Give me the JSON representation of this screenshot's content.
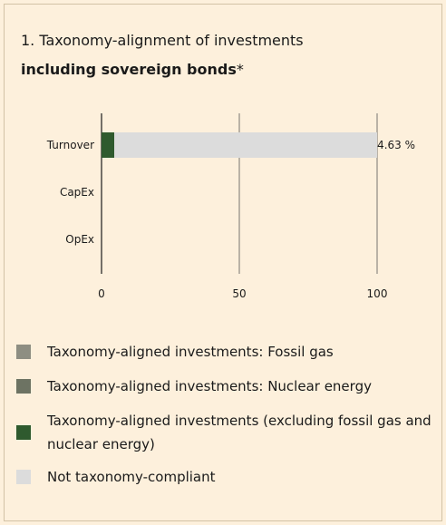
{
  "title": {
    "line1": "1. Taxonomy-alignment of investments",
    "line2_bold": "including sovereign bonds",
    "line2_suffix": "*"
  },
  "chart_data": {
    "type": "bar",
    "orientation": "horizontal",
    "stacked": true,
    "categories": [
      "Turnover",
      "CapEx",
      "OpEx"
    ],
    "series": [
      {
        "name": "Taxonomy-aligned investments: Fossil gas",
        "color": "#8e8e82",
        "values": [
          0,
          0,
          0
        ]
      },
      {
        "name": "Taxonomy-aligned investments: Nuclear energy",
        "color": "#6d7363",
        "values": [
          0,
          0,
          0
        ]
      },
      {
        "name": "Taxonomy-aligned investments (excluding fossil gas and nuclear energy)",
        "color": "#2f5a2e",
        "values": [
          4.63,
          0,
          0
        ]
      },
      {
        "name": "Not taxonomy-compliant",
        "color": "#dcdcdc",
        "values": [
          95.37,
          0,
          0
        ]
      }
    ],
    "data_labels": [
      "4.63 %",
      "",
      ""
    ],
    "xlim": [
      0,
      100
    ],
    "xticks": [
      0,
      50,
      100
    ],
    "grid": true,
    "legend_position": "bottom"
  },
  "legend": [
    {
      "label": "Taxonomy-aligned investments: Fossil gas",
      "color": "#8e8e82"
    },
    {
      "label": "Taxonomy-aligned investments: Nuclear energy",
      "color": "#6d7363"
    },
    {
      "label": "Taxonomy-aligned investments (excluding fossil gas and nuclear energy)",
      "color": "#2f5a2e"
    },
    {
      "label": "Not taxonomy-compliant",
      "color": "#dcdcdc"
    }
  ]
}
